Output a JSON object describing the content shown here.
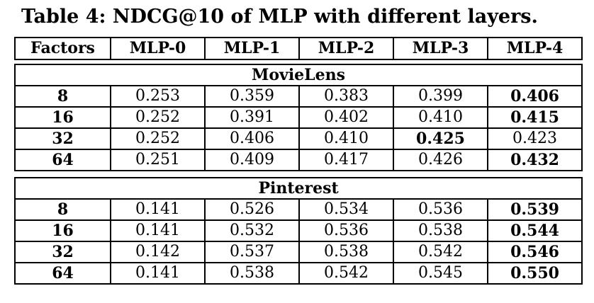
{
  "caption": "Table 4: NDCG@10 of MLP with different layers.",
  "header": [
    "Factors",
    "MLP-0",
    "MLP-1",
    "MLP-2",
    "MLP-3",
    "MLP-4"
  ],
  "sections": [
    {
      "title": "MovieLens",
      "rows": [
        {
          "factor": "8",
          "values": [
            "0.253",
            "0.359",
            "0.383",
            "0.399",
            "0.406"
          ],
          "best": 4
        },
        {
          "factor": "16",
          "values": [
            "0.252",
            "0.391",
            "0.402",
            "0.410",
            "0.415"
          ],
          "best": 4
        },
        {
          "factor": "32",
          "values": [
            "0.252",
            "0.406",
            "0.410",
            "0.425",
            "0.423"
          ],
          "best": 3
        },
        {
          "factor": "64",
          "values": [
            "0.251",
            "0.409",
            "0.417",
            "0.426",
            "0.432"
          ],
          "best": 4
        }
      ]
    },
    {
      "title": "Pinterest",
      "rows": [
        {
          "factor": "8",
          "values": [
            "0.141",
            "0.526",
            "0.534",
            "0.536",
            "0.539"
          ],
          "best": 4
        },
        {
          "factor": "16",
          "values": [
            "0.141",
            "0.532",
            "0.536",
            "0.538",
            "0.544"
          ],
          "best": 4
        },
        {
          "factor": "32",
          "values": [
            "0.142",
            "0.537",
            "0.538",
            "0.542",
            "0.546"
          ],
          "best": 4
        },
        {
          "factor": "64",
          "values": [
            "0.141",
            "0.538",
            "0.542",
            "0.545",
            "0.550"
          ],
          "best": 4
        }
      ]
    }
  ]
}
